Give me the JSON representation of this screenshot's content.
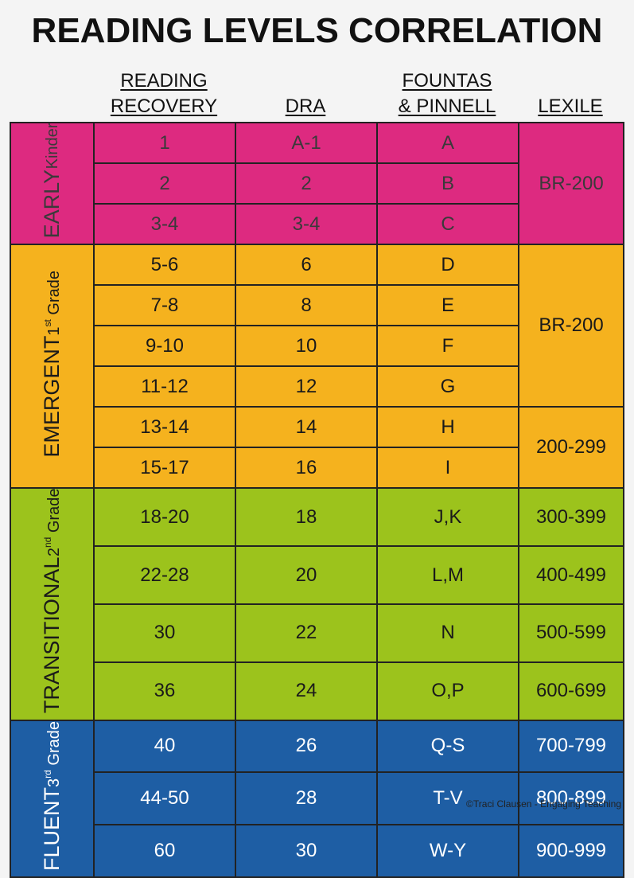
{
  "title": "READING LEVELS CORRELATION",
  "headers": [
    {
      "lines": [
        "READING",
        "RECOVERY"
      ]
    },
    {
      "lines": [
        "DRA"
      ]
    },
    {
      "lines": [
        "FOUNTAS",
        "& PINNELL"
      ]
    },
    {
      "lines": [
        "LEXILE"
      ]
    }
  ],
  "groups": [
    {
      "label": "EARLY",
      "sublabel": {
        "word": "Kinder"
      },
      "color": "#dd2a80",
      "text_color": "#3a3a3a",
      "rows": [
        [
          "1",
          "A-1",
          "A",
          "BR-200"
        ],
        [
          "2",
          "2",
          "B",
          null
        ],
        [
          "3-4",
          "3-4",
          "C",
          null
        ]
      ]
    },
    {
      "label": "EMERGENT",
      "sublabel": {
        "ordinal": "1",
        "suffix": "st",
        "word": "Grade"
      },
      "color": "#f5b21e",
      "text_color": "#1a1a1a",
      "rows": [
        [
          "5-6",
          "6",
          "D",
          "BR-200"
        ],
        [
          "7-8",
          "8",
          "E",
          null
        ],
        [
          "9-10",
          "10",
          "F",
          null
        ],
        [
          "11-12",
          "12",
          "G",
          null
        ],
        [
          "13-14",
          "14",
          "H",
          "200-299"
        ],
        [
          "15-17",
          "16",
          "I",
          null
        ]
      ]
    },
    {
      "label": "TRANSITIONAL",
      "sublabel": {
        "ordinal": "2",
        "suffix": "nd",
        "word": "Grade"
      },
      "color": "#9cc31c",
      "text_color": "#1a1a1a",
      "rows": [
        [
          "18-20",
          "18",
          "J,K",
          "300-399"
        ],
        [
          "22-28",
          "20",
          "L,M",
          "400-499"
        ],
        [
          "30",
          "22",
          "N",
          "500-599"
        ],
        [
          "36",
          "24",
          "O,P",
          "600-699"
        ]
      ]
    },
    {
      "label": "FLUENT",
      "sublabel": {
        "ordinal": "3",
        "suffix": "rd",
        "word": "Grade"
      },
      "color": "#1e5ea4",
      "text_color": "#ffffff",
      "rows": [
        [
          "40",
          "26",
          "Q-S",
          "700-799"
        ],
        [
          "44-50",
          "28",
          "T-V",
          "800-899"
        ],
        [
          "60",
          "30",
          "W-Y",
          "900-999"
        ]
      ]
    }
  ],
  "footer": "©Traci Clausen - Engaging Teaching"
}
